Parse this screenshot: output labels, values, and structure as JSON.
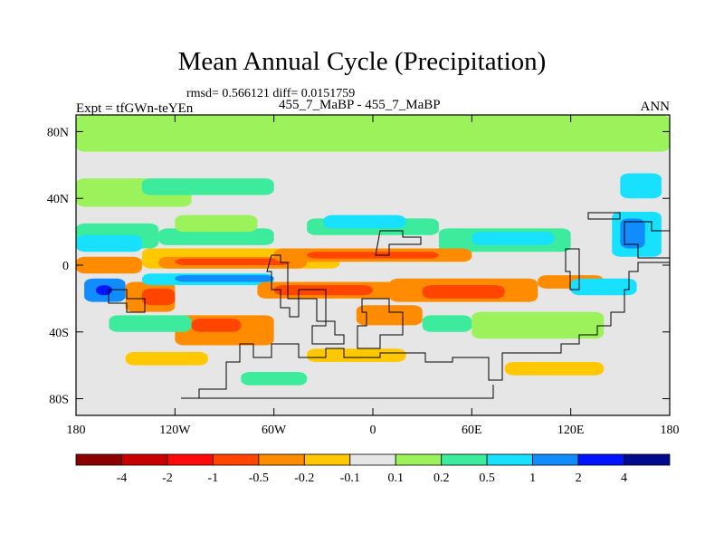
{
  "chart_data": {
    "type": "heatmap",
    "title": "Mean Annual Cycle (Precipitation)",
    "stats_line": "rmsd= 0.566121 diff= 0.0151759",
    "experiment": "Expt = tfGWn-teYEn",
    "comparison": "455_7_MaBP - 455_7_MaBP",
    "season": "ANN",
    "x_axis": {
      "range": [
        -180,
        180
      ],
      "ticks": [
        -180,
        -120,
        -60,
        0,
        60,
        120,
        180
      ],
      "tick_labels": [
        "180",
        "120W",
        "60W",
        "0",
        "60E",
        "120E",
        "180"
      ]
    },
    "y_axis": {
      "range": [
        -90,
        90
      ],
      "ticks": [
        80,
        40,
        0,
        -40,
        -80
      ],
      "tick_labels": [
        "80N",
        "40N",
        "0",
        "40S",
        "80S"
      ]
    },
    "colorbar": {
      "levels": [
        "-4",
        "-2",
        "-1",
        "-0.5",
        "-0.2",
        "-0.1",
        "0.1",
        "0.2",
        "0.5",
        "1",
        "2",
        "4"
      ],
      "colors": [
        "#8b0000",
        "#c80000",
        "#ff0a0a",
        "#ff4500",
        "#ff8c00",
        "#ffc800",
        "#e6e6e6",
        "#9cf25a",
        "#3ceb9b",
        "#18e1ff",
        "#108cff",
        "#0014ff",
        "#000a8c"
      ]
    },
    "field_regions": [
      {
        "lon": [
          -180,
          180
        ],
        "lat": [
          68,
          90
        ],
        "level": 0.15
      },
      {
        "lon": [
          -180,
          -110
        ],
        "lat": [
          35,
          52
        ],
        "level": 0.15
      },
      {
        "lon": [
          -140,
          -60
        ],
        "lat": [
          42,
          52
        ],
        "level": 0.35
      },
      {
        "lon": [
          -180,
          -130
        ],
        "lat": [
          10,
          25
        ],
        "level": 0.35
      },
      {
        "lon": [
          -180,
          -140
        ],
        "lat": [
          8,
          18
        ],
        "level": 0.7
      },
      {
        "lon": [
          -130,
          -60
        ],
        "lat": [
          12,
          22
        ],
        "level": 0.35
      },
      {
        "lon": [
          -120,
          -70
        ],
        "lat": [
          20,
          30
        ],
        "level": 0.15
      },
      {
        "lon": [
          -40,
          40
        ],
        "lat": [
          18,
          28
        ],
        "level": 0.35
      },
      {
        "lon": [
          -30,
          20
        ],
        "lat": [
          22,
          30
        ],
        "level": 0.7
      },
      {
        "lon": [
          40,
          120
        ],
        "lat": [
          8,
          22
        ],
        "level": 0.35
      },
      {
        "lon": [
          60,
          110
        ],
        "lat": [
          12,
          20
        ],
        "level": 0.7
      },
      {
        "lon": [
          145,
          175
        ],
        "lat": [
          5,
          32
        ],
        "level": 0.7
      },
      {
        "lon": [
          150,
          165
        ],
        "lat": [
          10,
          28
        ],
        "level": 1.5
      },
      {
        "lon": [
          150,
          175
        ],
        "lat": [
          40,
          55
        ],
        "level": 0.7
      },
      {
        "lon": [
          -140,
          -20
        ],
        "lat": [
          -2,
          10
        ],
        "level": -0.15
      },
      {
        "lon": [
          -130,
          -40
        ],
        "lat": [
          -2,
          5
        ],
        "level": -0.35
      },
      {
        "lon": [
          -120,
          -50
        ],
        "lat": [
          0,
          4
        ],
        "level": -0.7
      },
      {
        "lon": [
          -60,
          60
        ],
        "lat": [
          2,
          10
        ],
        "level": -0.35
      },
      {
        "lon": [
          -40,
          40
        ],
        "lat": [
          4,
          8
        ],
        "level": -0.7
      },
      {
        "lon": [
          -180,
          -140
        ],
        "lat": [
          -5,
          5
        ],
        "level": -0.35
      },
      {
        "lon": [
          -175,
          -150
        ],
        "lat": [
          -22,
          -8
        ],
        "level": 1.5
      },
      {
        "lon": [
          -168,
          -158
        ],
        "lat": [
          -18,
          -12
        ],
        "level": 3
      },
      {
        "lon": [
          -150,
          -120
        ],
        "lat": [
          -28,
          -10
        ],
        "level": -0.35
      },
      {
        "lon": [
          -140,
          -120
        ],
        "lat": [
          -24,
          -14
        ],
        "level": -0.7
      },
      {
        "lon": [
          -140,
          -60
        ],
        "lat": [
          -12,
          -5
        ],
        "level": 0.7
      },
      {
        "lon": [
          -120,
          -60
        ],
        "lat": [
          -10,
          -6
        ],
        "level": 1.5
      },
      {
        "lon": [
          -70,
          20
        ],
        "lat": [
          -20,
          -10
        ],
        "level": -0.35
      },
      {
        "lon": [
          -60,
          0
        ],
        "lat": [
          -18,
          -12
        ],
        "level": -0.7
      },
      {
        "lon": [
          10,
          100
        ],
        "lat": [
          -22,
          -8
        ],
        "level": -0.35
      },
      {
        "lon": [
          30,
          80
        ],
        "lat": [
          -20,
          -12
        ],
        "level": -0.7
      },
      {
        "lon": [
          100,
          140
        ],
        "lat": [
          -14,
          -6
        ],
        "level": -0.35
      },
      {
        "lon": [
          120,
          160
        ],
        "lat": [
          -18,
          -8
        ],
        "level": 0.7
      },
      {
        "lon": [
          -120,
          -60
        ],
        "lat": [
          -48,
          -30
        ],
        "level": -0.35
      },
      {
        "lon": [
          -110,
          -80
        ],
        "lat": [
          -40,
          -32
        ],
        "level": -0.7
      },
      {
        "lon": [
          -160,
          -110
        ],
        "lat": [
          -40,
          -30
        ],
        "level": 0.35
      },
      {
        "lon": [
          -10,
          30
        ],
        "lat": [
          -36,
          -24
        ],
        "level": -0.35
      },
      {
        "lon": [
          30,
          60
        ],
        "lat": [
          -40,
          -30
        ],
        "level": 0.35
      },
      {
        "lon": [
          60,
          140
        ],
        "lat": [
          -44,
          -28
        ],
        "level": 0.15
      },
      {
        "lon": [
          -150,
          -100
        ],
        "lat": [
          -60,
          -52
        ],
        "level": -0.15
      },
      {
        "lon": [
          -40,
          20
        ],
        "lat": [
          -58,
          -50
        ],
        "level": -0.15
      },
      {
        "lon": [
          80,
          140
        ],
        "lat": [
          -66,
          -58
        ],
        "level": -0.15
      },
      {
        "lon": [
          -80,
          -40
        ],
        "lat": [
          -72,
          -64
        ],
        "level": 0.35
      }
    ]
  }
}
